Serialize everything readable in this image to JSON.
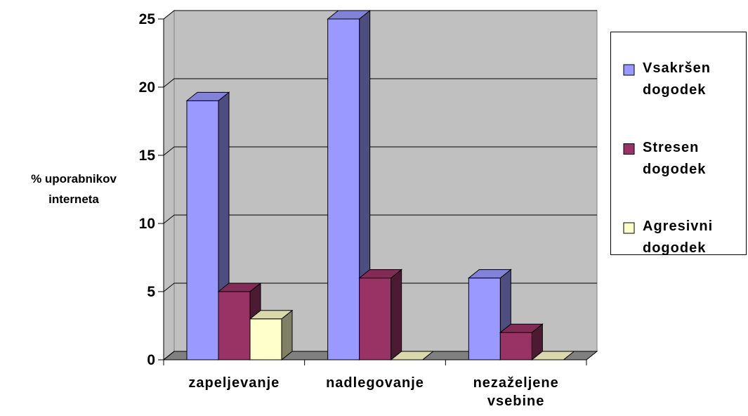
{
  "chart_data": {
    "type": "bar3d",
    "y_label": "% uporabnikov interneta",
    "categories": [
      "zapeljevanje",
      "nadlegovanje",
      "nezaželjene vsebine"
    ],
    "series": [
      {
        "name": "Vsakršen dogodek",
        "color": "#9999ff",
        "values": [
          19,
          25,
          6
        ]
      },
      {
        "name": "Stresen dogodek",
        "color": "#993366",
        "values": [
          5,
          6,
          2
        ]
      },
      {
        "name": "Agresivni dogodek",
        "color": "#ffffcc",
        "values": [
          3,
          0,
          0
        ]
      }
    ],
    "ylim": [
      0,
      25
    ],
    "yticks": [
      0,
      5,
      10,
      15,
      20,
      25
    ],
    "grid": true,
    "legend": "right"
  }
}
